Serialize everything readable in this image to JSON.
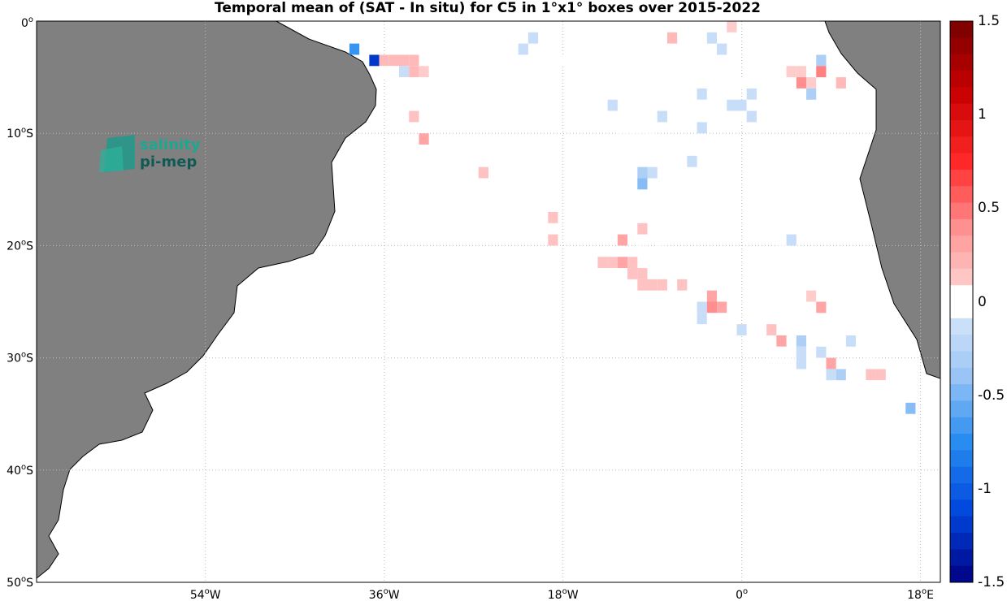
{
  "title": "Temporal mean of (SAT - In situ) for C5 in 1°x1° boxes over 2015-2022",
  "logo": {
    "line1": "salinity",
    "line2": "pi-mep"
  },
  "lat_ticks": [
    {
      "value": 0,
      "label": "0"
    },
    {
      "value": -10,
      "label": "10",
      "hemi": "S"
    },
    {
      "value": -20,
      "label": "20",
      "hemi": "S"
    },
    {
      "value": -30,
      "label": "30",
      "hemi": "S"
    },
    {
      "value": -40,
      "label": "40",
      "hemi": "S"
    },
    {
      "value": -50,
      "label": "50",
      "hemi": "S"
    }
  ],
  "lon_ticks": [
    {
      "value": -54,
      "label": "54",
      "hemi": "W"
    },
    {
      "value": -36,
      "label": "36",
      "hemi": "W"
    },
    {
      "value": -18,
      "label": "18",
      "hemi": "W"
    },
    {
      "value": 0,
      "label": "0",
      "hemi": ""
    },
    {
      "value": 18,
      "label": "18",
      "hemi": "E"
    }
  ],
  "colorbar": {
    "min": -1.5,
    "max": 1.5,
    "labels": [
      "1.5",
      "1",
      "0.5",
      "0",
      "-0.5",
      "-1",
      "-1.5"
    ]
  },
  "colors": {
    "land": "#808080",
    "coast": "#000000",
    "grid": "#bbbbbb"
  },
  "chart_data": {
    "type": "heatmap",
    "title": "Temporal mean of (SAT - In situ) for C5 in 1°x1° boxes over 2015-2022",
    "xlim": [
      -71,
      20
    ],
    "ylim": [
      -50,
      0
    ],
    "cells": [
      [
        -27,
        -0.5,
        -0.05
      ],
      [
        -22,
        -0.5,
        -0.05
      ],
      [
        -23,
        -0.5,
        -0.05
      ],
      [
        -20,
        -0.5,
        -0.05
      ],
      [
        -17,
        -0.5,
        -0.05
      ],
      [
        -16,
        -0.5,
        -0.05
      ],
      [
        -15,
        -0.5,
        -0.05
      ],
      [
        -14,
        -0.5,
        -0.05
      ],
      [
        -10,
        -0.5,
        -0.05
      ],
      [
        -8,
        -0.5,
        -0.05
      ],
      [
        -4,
        -0.5,
        -0.05
      ],
      [
        -1,
        -0.5,
        0.1
      ],
      [
        -21,
        -1.5,
        -0.15
      ],
      [
        -16,
        -1.5,
        -0.05
      ],
      [
        -15,
        -1.5,
        -0.05
      ],
      [
        -14,
        -1.5,
        -0.05
      ],
      [
        -13,
        -1.5,
        -0.05
      ],
      [
        -12,
        -1.5,
        -0.05
      ],
      [
        -11,
        -1.5,
        -0.05
      ],
      [
        -7,
        -1.5,
        0.2
      ],
      [
        -3,
        -1.5,
        -0.15
      ],
      [
        3,
        -1.5,
        -0.05
      ],
      [
        -37,
        -2.5,
        -0.05
      ],
      [
        -23,
        -2.5,
        -0.05
      ],
      [
        -22,
        -2.5,
        -0.15
      ],
      [
        -2,
        -2.5,
        -0.15
      ],
      [
        4,
        -2.5,
        -0.05
      ],
      [
        -39,
        -2.5,
        -0.7
      ],
      [
        -37,
        -2.5,
        -0.05
      ],
      [
        -35,
        -2.5,
        -0.05
      ],
      [
        -23,
        -3.5,
        -0.05
      ],
      [
        -22,
        -3.5,
        -0.05
      ],
      [
        -18,
        -3.5,
        -0.05
      ],
      [
        -3,
        -3.5,
        -0.05
      ],
      [
        8,
        -3.5,
        -0.3
      ],
      [
        -37,
        -3.5,
        -1.2
      ],
      [
        -36,
        -3.5,
        0.2
      ],
      [
        -35,
        -3.5,
        0.2
      ],
      [
        -34,
        -3.5,
        0.2
      ],
      [
        -33,
        -3.5,
        0.2
      ],
      [
        -36,
        -4.5,
        -0.05
      ],
      [
        -35,
        -4.5,
        -0.05
      ],
      [
        -34,
        -4.5,
        -0.15
      ],
      [
        -33,
        -4.5,
        0.2
      ],
      [
        -32,
        -4.5,
        0.1
      ],
      [
        -1,
        -4.5,
        -0.05
      ],
      [
        5,
        -4.5,
        0.1
      ],
      [
        6,
        -4.5,
        0.1
      ],
      [
        8,
        -4.5,
        0.45
      ],
      [
        -33,
        -5.5,
        -0.05
      ],
      [
        -32,
        -5.5,
        -0.05
      ],
      [
        -1,
        -5.5,
        -0.05
      ],
      [
        0,
        -5.5,
        -0.05
      ],
      [
        6,
        -5.5,
        0.4
      ],
      [
        7,
        -5.5,
        0.1
      ],
      [
        9,
        -5.5,
        -0.05
      ],
      [
        10,
        -5.5,
        0.2
      ],
      [
        -30,
        -6.5,
        -0.05
      ],
      [
        -20,
        -6.5,
        -0.05
      ],
      [
        -19,
        -6.5,
        -0.05
      ],
      [
        -10,
        -6.5,
        -0.05
      ],
      [
        -9,
        -6.5,
        -0.05
      ],
      [
        -7,
        -6.5,
        -0.05
      ],
      [
        -6,
        -6.5,
        -0.05
      ],
      [
        -4,
        -6.5,
        -0.15
      ],
      [
        -3,
        -6.5,
        -0.05
      ],
      [
        1,
        -6.5,
        -0.15
      ],
      [
        6,
        -6.5,
        0.05
      ],
      [
        7,
        -6.5,
        -0.3
      ],
      [
        -14,
        -7.5,
        -0.05
      ],
      [
        -13,
        -7.5,
        -0.15
      ],
      [
        -10,
        -7.5,
        -0.05
      ],
      [
        -9,
        -7.5,
        -0.05
      ],
      [
        -8,
        -7.5,
        -0.05
      ],
      [
        -4,
        -7.5,
        -0.05
      ],
      [
        -1,
        -7.5,
        -0.15
      ],
      [
        0,
        -7.5,
        -0.15
      ],
      [
        1,
        -7.5,
        -0.05
      ],
      [
        2,
        -7.5,
        -0.05
      ],
      [
        -33,
        -8.5,
        0.15
      ],
      [
        -14,
        -8.5,
        -0.05
      ],
      [
        -13,
        -8.5,
        -0.05
      ],
      [
        -12,
        -8.5,
        -0.05
      ],
      [
        -11,
        -8.5,
        -0.05
      ],
      [
        -10,
        -8.5,
        -0.05
      ],
      [
        -8,
        -8.5,
        -0.15
      ],
      [
        -1,
        -8.5,
        -0.05
      ],
      [
        0,
        -8.5,
        -0.05
      ],
      [
        1,
        -8.5,
        -0.15
      ],
      [
        -12,
        -9.5,
        -0.05
      ],
      [
        -11,
        -9.5,
        -0.05
      ],
      [
        -10,
        -9.5,
        -0.05
      ],
      [
        -4,
        -9.5,
        -0.15
      ],
      [
        -32,
        -10.5,
        0.3
      ],
      [
        -9,
        -10.5,
        -0.05
      ],
      [
        -24,
        -11.5,
        -0.05
      ],
      [
        -5,
        -12.5,
        -0.15
      ],
      [
        -2,
        -12.5,
        -0.05
      ],
      [
        -1,
        -12.5,
        -0.05
      ],
      [
        -26,
        -13.5,
        0.15
      ],
      [
        -10,
        -13.5,
        -0.3
      ],
      [
        -9,
        -13.5,
        -0.15
      ],
      [
        -4,
        -13.5,
        -0.05
      ],
      [
        -10,
        -14.5,
        -0.45
      ],
      [
        -9,
        -14.5,
        -0.05
      ],
      [
        -1,
        -14.5,
        -0.05
      ],
      [
        -19,
        -17.5,
        0.15
      ],
      [
        -6,
        -17.5,
        -0.05
      ],
      [
        2,
        -17.5,
        -0.05
      ],
      [
        -10,
        -18.5,
        0.15
      ],
      [
        -19,
        -19.5,
        0.15
      ],
      [
        -12,
        -19.5,
        0.3
      ],
      [
        -8,
        -19.5,
        -0.05
      ],
      [
        4,
        -19.5,
        -0.05
      ],
      [
        5,
        -19.5,
        -0.15
      ],
      [
        -10,
        -20.5,
        -0.05
      ],
      [
        -14,
        -21.5,
        0.15
      ],
      [
        -13,
        -21.5,
        0.15
      ],
      [
        -12,
        -21.5,
        0.3
      ],
      [
        -11,
        -21.5,
        0.15
      ],
      [
        6,
        -21.5,
        -0.05
      ],
      [
        -11,
        -22.5,
        0.15
      ],
      [
        -10,
        -22.5,
        0.15
      ],
      [
        -10,
        -23.5,
        0.15
      ],
      [
        -9,
        -23.5,
        0.15
      ],
      [
        -8,
        -23.5,
        0.15
      ],
      [
        -6,
        -23.5,
        0.15
      ],
      [
        8,
        -23.5,
        -0.05
      ],
      [
        -5,
        -24.5,
        -0.05
      ],
      [
        -3,
        -24.5,
        0.3
      ],
      [
        7,
        -24.5,
        0.1
      ],
      [
        8,
        -24.5,
        -0.05
      ],
      [
        -4,
        -25.5,
        -0.15
      ],
      [
        -3,
        -25.5,
        0.4
      ],
      [
        -2,
        -25.5,
        0.3
      ],
      [
        8,
        -25.5,
        0.3
      ],
      [
        -4,
        -26.5,
        -0.15
      ],
      [
        -3,
        -26.5,
        -0.05
      ],
      [
        -2,
        -26.5,
        -0.05
      ],
      [
        11,
        -26.5,
        -0.05
      ],
      [
        0,
        -27.5,
        -0.15
      ],
      [
        1,
        -27.5,
        -0.05
      ],
      [
        3,
        -27.5,
        0.15
      ],
      [
        11,
        -27.5,
        -0.05
      ],
      [
        1,
        -28.5,
        -0.05
      ],
      [
        4,
        -28.5,
        0.3
      ],
      [
        6,
        -28.5,
        -0.3
      ],
      [
        11,
        -28.5,
        -0.15
      ],
      [
        12,
        -28.5,
        -0.05
      ],
      [
        3,
        -29.5,
        -0.05
      ],
      [
        4,
        -29.5,
        -0.05
      ],
      [
        5,
        -29.5,
        -0.05
      ],
      [
        6,
        -29.5,
        -0.15
      ],
      [
        7,
        -29.5,
        -0.05
      ],
      [
        8,
        -29.5,
        -0.15
      ],
      [
        6,
        -30.5,
        -0.15
      ],
      [
        7,
        -30.5,
        -0.05
      ],
      [
        8,
        -30.5,
        -0.05
      ],
      [
        9,
        -30.5,
        0.3
      ],
      [
        13,
        -30.5,
        -0.05
      ],
      [
        9,
        -31.5,
        -0.15
      ],
      [
        10,
        -31.5,
        -0.3
      ],
      [
        11,
        -31.5,
        -0.05
      ],
      [
        13,
        -31.5,
        0.15
      ],
      [
        14,
        -31.5,
        0.15
      ],
      [
        11,
        -32.5,
        -0.05
      ],
      [
        12,
        -32.5,
        -0.05
      ],
      [
        13,
        -32.5,
        -0.05
      ],
      [
        14,
        -32.5,
        -0.05
      ],
      [
        15,
        -33.5,
        -0.05
      ],
      [
        17,
        -34.5,
        -0.45
      ],
      [
        19,
        -35.5,
        -0.05
      ]
    ]
  }
}
